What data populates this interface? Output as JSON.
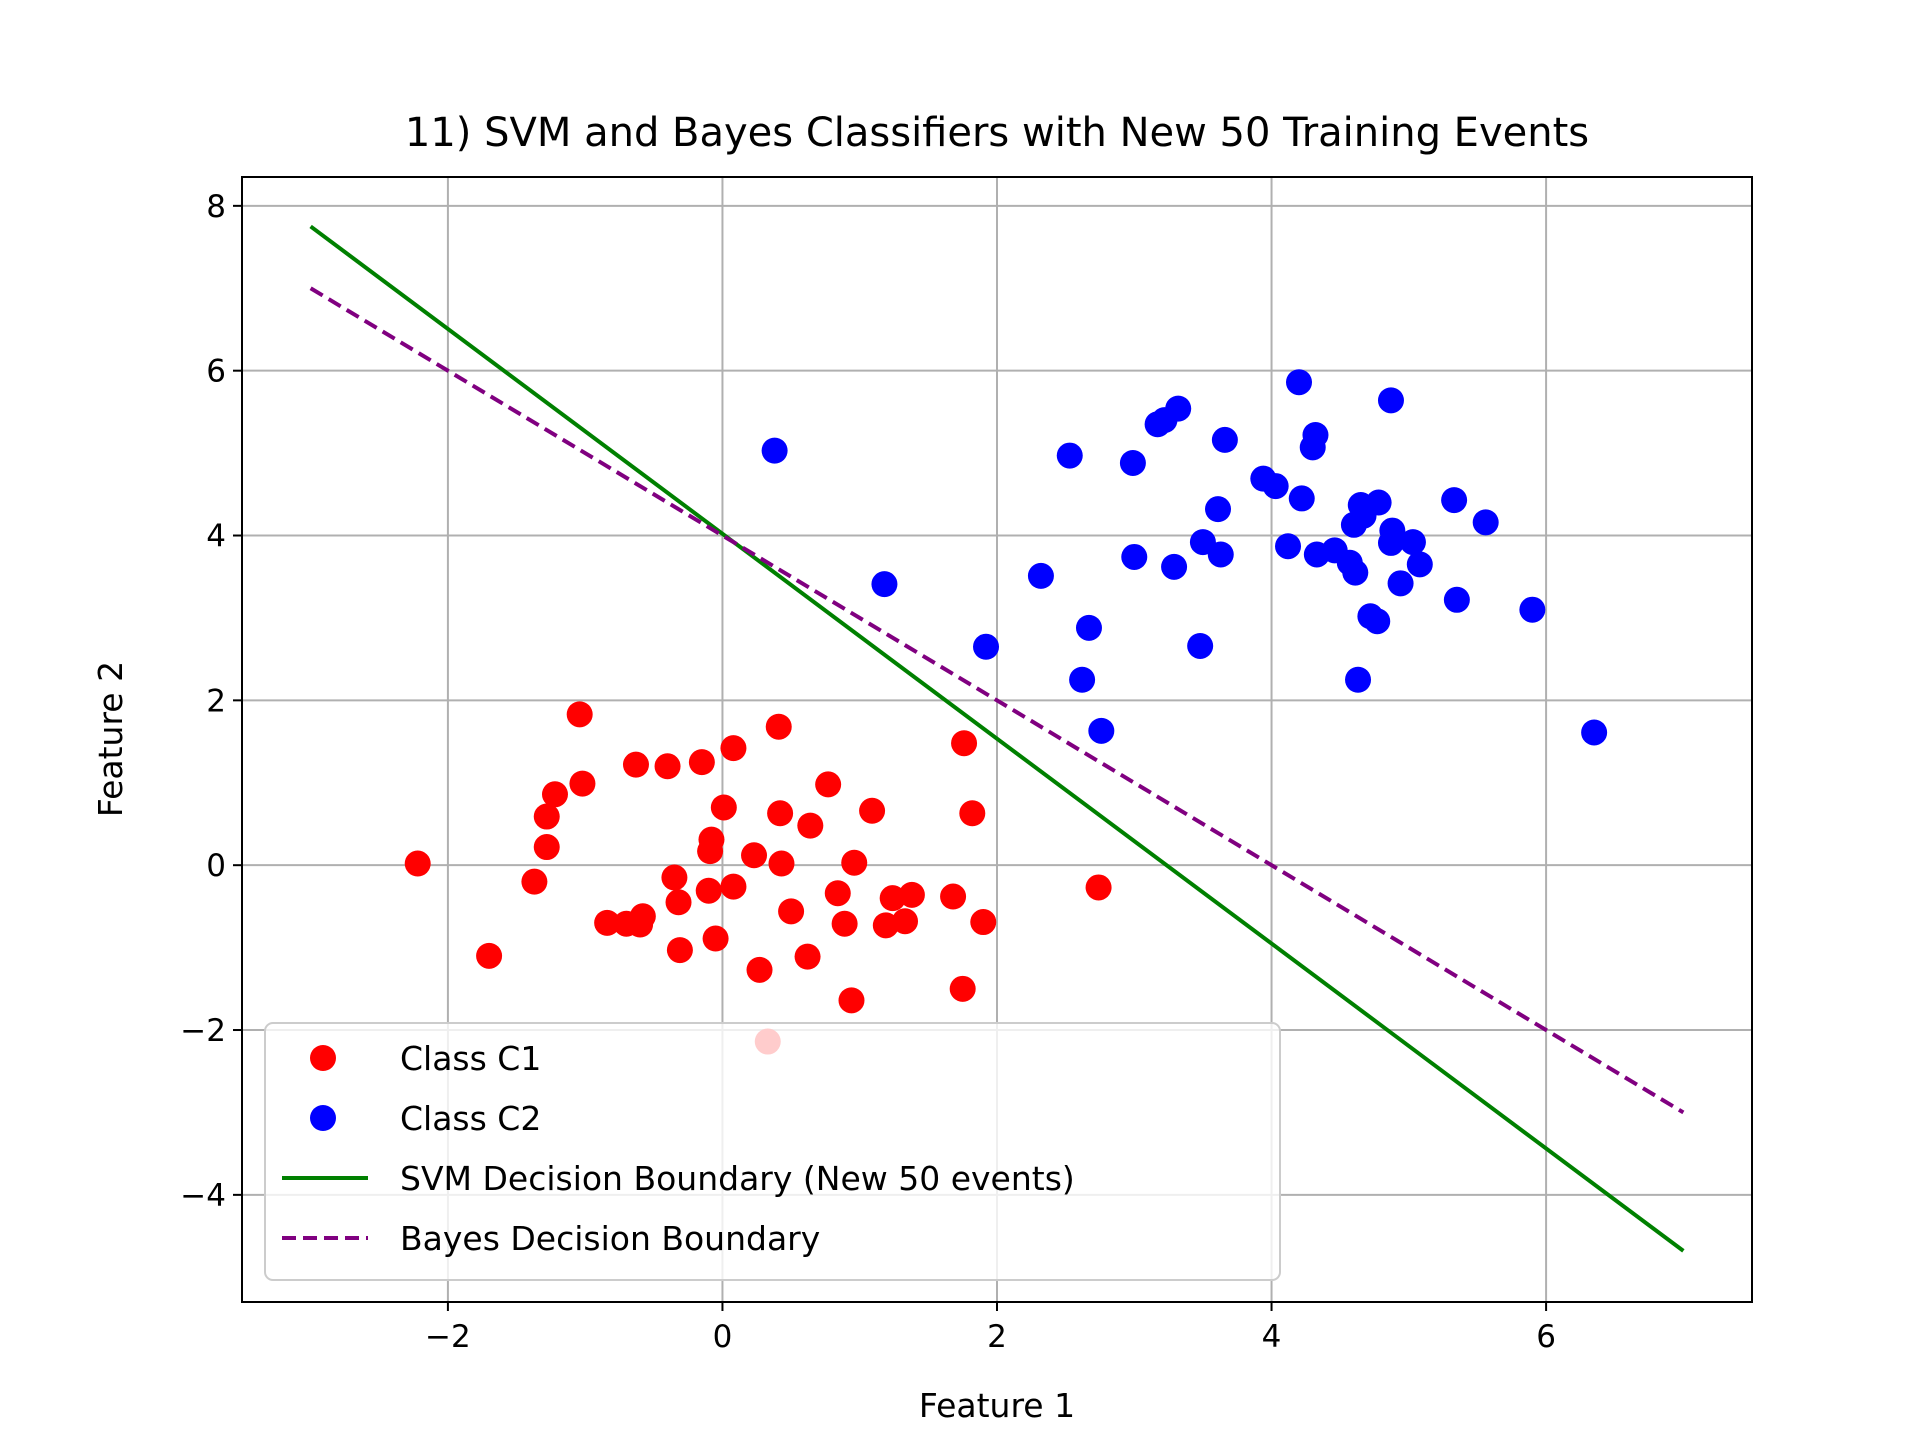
{
  "chart_data": {
    "type": "scatter",
    "title": "11) SVM and Bayes Classifiers with New 50 Training Events",
    "xlabel": "Feature 1",
    "ylabel": "Feature 2",
    "xlim": [
      -3.5,
      7.5
    ],
    "ylim": [
      -5.3,
      8.35
    ],
    "xticks": [
      -2,
      0,
      2,
      4,
      6
    ],
    "yticks": [
      -4,
      -2,
      0,
      2,
      4,
      6,
      8
    ],
    "grid": true,
    "legend_position": "lower-left",
    "colors": {
      "c1": "#ff0000",
      "c2": "#0000ff",
      "svm": "#008000",
      "bayes": "#800080",
      "grid": "#b0b0b0"
    },
    "series": [
      {
        "name": "Class C1",
        "kind": "scatter",
        "color": "#ff0000",
        "points": [
          [
            -2.22,
            0.02
          ],
          [
            -1.7,
            -1.1
          ],
          [
            -1.37,
            -0.2
          ],
          [
            -1.28,
            0.22
          ],
          [
            -1.28,
            0.59
          ],
          [
            -1.22,
            0.86
          ],
          [
            -1.04,
            1.83
          ],
          [
            -1.02,
            0.99
          ],
          [
            -0.84,
            -0.7
          ],
          [
            -0.7,
            -0.71
          ],
          [
            -0.63,
            1.22
          ],
          [
            -0.6,
            -0.72
          ],
          [
            -0.58,
            -0.62
          ],
          [
            -0.4,
            1.2
          ],
          [
            -0.35,
            -0.15
          ],
          [
            -0.32,
            -0.45
          ],
          [
            -0.31,
            -1.03
          ],
          [
            -0.15,
            1.25
          ],
          [
            -0.1,
            -0.31
          ],
          [
            -0.09,
            0.17
          ],
          [
            -0.08,
            0.31
          ],
          [
            -0.05,
            -0.89
          ],
          [
            0.01,
            0.7
          ],
          [
            0.08,
            -0.26
          ],
          [
            0.08,
            1.42
          ],
          [
            0.23,
            0.12
          ],
          [
            0.27,
            -1.27
          ],
          [
            0.33,
            -2.14
          ],
          [
            0.41,
            1.68
          ],
          [
            0.42,
            0.63
          ],
          [
            0.43,
            0.02
          ],
          [
            0.5,
            -0.56
          ],
          [
            0.62,
            -1.11
          ],
          [
            0.64,
            0.48
          ],
          [
            0.77,
            0.98
          ],
          [
            0.84,
            -0.34
          ],
          [
            0.89,
            -0.71
          ],
          [
            0.94,
            -1.64
          ],
          [
            0.96,
            0.03
          ],
          [
            1.09,
            0.66
          ],
          [
            1.19,
            -0.73
          ],
          [
            1.24,
            -0.4
          ],
          [
            1.33,
            -0.68
          ],
          [
            1.38,
            -0.36
          ],
          [
            1.68,
            -0.38
          ],
          [
            1.75,
            -1.5
          ],
          [
            1.76,
            1.48
          ],
          [
            1.82,
            0.63
          ],
          [
            1.9,
            -0.69
          ],
          [
            2.74,
            -0.27
          ]
        ]
      },
      {
        "name": "Class C2",
        "kind": "scatter",
        "color": "#0000ff",
        "points": [
          [
            0.38,
            5.03
          ],
          [
            1.18,
            3.41
          ],
          [
            1.92,
            2.65
          ],
          [
            2.32,
            3.51
          ],
          [
            2.53,
            4.97
          ],
          [
            2.62,
            2.25
          ],
          [
            2.67,
            2.88
          ],
          [
            2.76,
            1.63
          ],
          [
            2.99,
            4.88
          ],
          [
            3.0,
            3.74
          ],
          [
            3.17,
            5.35
          ],
          [
            3.22,
            5.4
          ],
          [
            3.29,
            3.62
          ],
          [
            3.32,
            5.54
          ],
          [
            3.48,
            2.66
          ],
          [
            3.5,
            3.92
          ],
          [
            3.61,
            4.32
          ],
          [
            3.63,
            3.77
          ],
          [
            3.66,
            5.16
          ],
          [
            3.94,
            4.69
          ],
          [
            4.03,
            4.6
          ],
          [
            4.12,
            3.87
          ],
          [
            4.2,
            5.86
          ],
          [
            4.22,
            4.45
          ],
          [
            4.3,
            5.07
          ],
          [
            4.32,
            5.22
          ],
          [
            4.33,
            3.77
          ],
          [
            4.46,
            3.82
          ],
          [
            4.57,
            3.67
          ],
          [
            4.6,
            4.13
          ],
          [
            4.61,
            3.55
          ],
          [
            4.63,
            2.25
          ],
          [
            4.65,
            4.37
          ],
          [
            4.67,
            4.24
          ],
          [
            4.72,
            3.02
          ],
          [
            4.77,
            2.96
          ],
          [
            4.78,
            4.4
          ],
          [
            4.87,
            5.64
          ],
          [
            4.87,
            3.91
          ],
          [
            4.88,
            4.06
          ],
          [
            4.94,
            3.42
          ],
          [
            5.03,
            3.92
          ],
          [
            5.08,
            3.65
          ],
          [
            5.33,
            4.43
          ],
          [
            5.35,
            3.22
          ],
          [
            5.56,
            4.16
          ],
          [
            5.9,
            3.1
          ],
          [
            6.35,
            1.61
          ]
        ]
      },
      {
        "name": "SVM Decision Boundary (New 50 events)",
        "kind": "line",
        "style": "solid",
        "color": "#008000",
        "points": [
          [
            -3.0,
            7.75
          ],
          [
            7.0,
            -4.68
          ]
        ]
      },
      {
        "name": "Bayes Decision Boundary",
        "kind": "line",
        "style": "dashed",
        "color": "#800080",
        "points": [
          [
            -3.0,
            7.0
          ],
          [
            7.0,
            -3.0
          ]
        ]
      }
    ]
  }
}
